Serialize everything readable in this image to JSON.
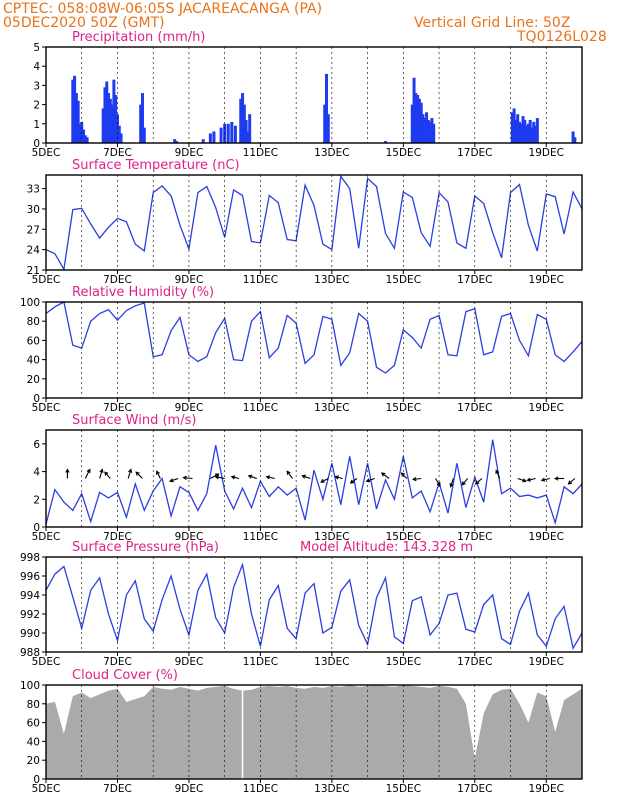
{
  "header": {
    "line1": "CPTEC:    058:08W-06:05S   JACAREACANGA (PA)",
    "line2": "05DEC2020 50Z (GMT)",
    "right1": "Vertical Grid Line: 50Z",
    "right2": "TQ0126L028"
  },
  "x_days": [
    "5DEC",
    "7DEC",
    "9DEC",
    "11DEC",
    "13DEC",
    "15DEC",
    "17DEC",
    "19DEC"
  ],
  "chart_data": [
    {
      "type": "bar",
      "title": "Precipitation  (mm/h)",
      "ylim": [
        0,
        5
      ],
      "yticks": [
        "0",
        "1",
        "2",
        "3",
        "4",
        "5"
      ],
      "xlim_days": [
        5,
        20
      ],
      "x": [
        5.75,
        5.8,
        5.85,
        5.9,
        5.95,
        6.0,
        6.05,
        6.1,
        6.15,
        6.6,
        6.65,
        6.7,
        6.75,
        6.8,
        6.85,
        6.9,
        6.95,
        7.0,
        7.05,
        7.1,
        7.65,
        7.7,
        7.75,
        8.6,
        8.65,
        9.4,
        9.6,
        9.7,
        9.9,
        10.0,
        10.1,
        10.2,
        10.3,
        10.45,
        10.5,
        10.55,
        10.6,
        10.65,
        10.7,
        12.8,
        12.85,
        12.9,
        14.5,
        15.25,
        15.3,
        15.35,
        15.4,
        15.45,
        15.5,
        15.55,
        15.6,
        15.65,
        15.7,
        15.75,
        15.8,
        15.85,
        18.05,
        18.1,
        18.15,
        18.2,
        18.25,
        18.3,
        18.35,
        18.4,
        18.45,
        18.5,
        18.55,
        18.6,
        18.65,
        18.7,
        18.75,
        19.75,
        19.8
      ],
      "values": [
        3.3,
        3.5,
        2.6,
        2.2,
        1.0,
        1.1,
        0.7,
        0.4,
        0.3,
        1.8,
        2.9,
        3.2,
        2.6,
        2.3,
        2.0,
        3.3,
        2.5,
        1.5,
        0.9,
        0.5,
        2.0,
        2.6,
        0.8,
        0.2,
        0.1,
        0.2,
        0.5,
        0.6,
        0.8,
        1.0,
        1.0,
        1.1,
        0.9,
        2.3,
        2.6,
        2.0,
        1.2,
        0.6,
        1.5,
        2.0,
        3.6,
        1.5,
        0.1,
        2.0,
        3.4,
        2.6,
        2.5,
        2.3,
        2.1,
        1.5,
        1.3,
        1.6,
        1.2,
        1.1,
        1.3,
        1.0,
        1.6,
        1.8,
        1.2,
        1.5,
        1.1,
        1.0,
        1.4,
        1.2,
        0.9,
        1.0,
        1.2,
        0.8,
        1.1,
        0.9,
        1.3,
        0.6,
        0.3
      ]
    },
    {
      "type": "line",
      "title": "Surface Temperature (nC)",
      "ylim": [
        21,
        35
      ],
      "yticks": [
        "21",
        "24",
        "27",
        "30",
        "33"
      ],
      "x": [
        5,
        5.25,
        5.5,
        5.75,
        6,
        6.25,
        6.5,
        6.75,
        7,
        7.25,
        7.5,
        7.75,
        8,
        8.25,
        8.5,
        8.75,
        9,
        9.25,
        9.5,
        9.75,
        10,
        10.25,
        10.5,
        10.75,
        11,
        11.25,
        11.5,
        11.75,
        12,
        12.25,
        12.5,
        12.75,
        13,
        13.25,
        13.5,
        13.75,
        14,
        14.25,
        14.5,
        14.75,
        15,
        15.25,
        15.5,
        15.75,
        16,
        16.25,
        16.5,
        16.75,
        17,
        17.25,
        17.5,
        17.75,
        18,
        18.25,
        18.5,
        18.75,
        19,
        19.25,
        19.5,
        19.75,
        20
      ],
      "values": [
        24.0,
        23.4,
        21.1,
        29.9,
        30.1,
        27.8,
        25.7,
        27.3,
        28.6,
        28.1,
        24.8,
        23.8,
        32.4,
        33.4,
        31.9,
        27.6,
        24.1,
        32.4,
        33.3,
        30.2,
        25.8,
        32.8,
        32.0,
        25.2,
        25.0,
        32.0,
        30.9,
        25.5,
        25.3,
        33.5,
        30.5,
        24.8,
        24.0,
        34.8,
        33.0,
        24.2,
        34.5,
        33.3,
        26.4,
        24.2,
        32.5,
        31.7,
        26.5,
        24.5,
        32.4,
        31.0,
        25.0,
        24.2,
        31.9,
        30.8,
        26.5,
        22.8,
        32.4,
        33.6,
        27.6,
        23.8,
        32.2,
        31.8,
        26.3,
        32.5,
        30.0
      ]
    },
    {
      "type": "line",
      "title": "Relative Humidity  (%)",
      "ylim": [
        0,
        100
      ],
      "yticks": [
        "0",
        "20",
        "40",
        "60",
        "80",
        "100"
      ],
      "x": [
        5,
        5.25,
        5.5,
        5.75,
        6,
        6.25,
        6.5,
        6.75,
        7,
        7.25,
        7.5,
        7.75,
        8,
        8.25,
        8.5,
        8.75,
        9,
        9.25,
        9.5,
        9.75,
        10,
        10.25,
        10.5,
        10.75,
        11,
        11.25,
        11.5,
        11.75,
        12,
        12.25,
        12.5,
        12.75,
        13,
        13.25,
        13.5,
        13.75,
        14,
        14.25,
        14.5,
        14.75,
        15,
        15.25,
        15.5,
        15.75,
        16,
        16.25,
        16.5,
        16.75,
        17,
        17.25,
        17.5,
        17.75,
        18,
        18.25,
        18.5,
        18.75,
        19,
        19.25,
        19.5,
        19.75,
        20
      ],
      "values": [
        88,
        95,
        100,
        55,
        52,
        80,
        88,
        92,
        81,
        91,
        96,
        99,
        43,
        45,
        70,
        84,
        45,
        38,
        43,
        68,
        83,
        40,
        39,
        80,
        90,
        42,
        52,
        86,
        78,
        36,
        45,
        85,
        82,
        34,
        47,
        88,
        80,
        32,
        26,
        34,
        71,
        63,
        52,
        82,
        86,
        45,
        44,
        90,
        93,
        45,
        48,
        85,
        88,
        60,
        44,
        87,
        82,
        45,
        38,
        48,
        59
      ]
    },
    {
      "type": "line",
      "title": "Surface Wind  (m/s)",
      "ylim": [
        0,
        7
      ],
      "yticks": [
        "0",
        "2",
        "4",
        "6"
      ],
      "x": [
        5,
        5.25,
        5.5,
        5.75,
        6,
        6.25,
        6.5,
        6.75,
        7,
        7.25,
        7.5,
        7.75,
        8,
        8.25,
        8.5,
        8.75,
        9,
        9.25,
        9.5,
        9.75,
        10,
        10.25,
        10.5,
        10.75,
        11,
        11.25,
        11.5,
        11.75,
        12,
        12.25,
        12.5,
        12.75,
        13,
        13.25,
        13.5,
        13.75,
        14,
        14.25,
        14.5,
        14.75,
        15,
        15.25,
        15.5,
        15.75,
        16,
        16.25,
        16.5,
        16.75,
        17,
        17.25,
        17.5,
        17.75,
        18,
        18.25,
        18.5,
        18.75,
        19,
        19.25,
        19.5,
        19.75,
        20
      ],
      "values": [
        0.2,
        2.7,
        1.8,
        1.2,
        2.4,
        0.4,
        2.5,
        2.1,
        2.5,
        0.7,
        3.1,
        1.2,
        2.6,
        3.5,
        0.8,
        2.9,
        2.5,
        1.2,
        2.4,
        5.9,
        2.6,
        1.3,
        2.8,
        1.4,
        3.3,
        2.2,
        2.9,
        2.3,
        2.8,
        0.5,
        4.1,
        2.0,
        4.6,
        1.6,
        5.1,
        1.6,
        4.6,
        1.3,
        3.4,
        2.0,
        5.1,
        2.1,
        2.6,
        1.1,
        3.2,
        1.0,
        4.6,
        1.4,
        3.6,
        1.8,
        6.3,
        2.4,
        2.8,
        2.2,
        2.3,
        2.1,
        2.3,
        0.3,
        2.9,
        2.4,
        3.1
      ]
    },
    {
      "type": "line",
      "title": "Surface Pressure (hPa)",
      "annotation": "Model Altitude: 143.328  m",
      "ylim": [
        988,
        998
      ],
      "yticks": [
        "988",
        "990",
        "992",
        "994",
        "996",
        "998"
      ],
      "x": [
        5,
        5.25,
        5.5,
        5.75,
        6,
        6.25,
        6.5,
        6.75,
        7,
        7.25,
        7.5,
        7.75,
        8,
        8.25,
        8.5,
        8.75,
        9,
        9.25,
        9.5,
        9.75,
        10,
        10.25,
        10.5,
        10.75,
        11,
        11.25,
        11.5,
        11.75,
        12,
        12.25,
        12.5,
        12.75,
        13,
        13.25,
        13.5,
        13.75,
        14,
        14.25,
        14.5,
        14.75,
        15,
        15.25,
        15.5,
        15.75,
        16,
        16.25,
        16.5,
        16.75,
        17,
        17.25,
        17.5,
        17.75,
        18,
        18.25,
        18.5,
        18.75,
        19,
        19.25,
        19.5,
        19.75,
        20
      ],
      "values": [
        994.5,
        996.2,
        997.0,
        993.8,
        990.5,
        994.5,
        995.8,
        992.0,
        989.2,
        994.0,
        995.5,
        991.5,
        990.2,
        993.5,
        996.0,
        992.5,
        989.8,
        994.5,
        996.2,
        991.6,
        990.0,
        994.8,
        997.2,
        992.0,
        988.6,
        993.5,
        995.0,
        990.5,
        989.4,
        994.2,
        995.2,
        990.0,
        990.6,
        994.4,
        995.6,
        990.8,
        988.8,
        993.7,
        995.8,
        989.6,
        988.9,
        993.4,
        993.8,
        989.8,
        991.0,
        994.0,
        994.2,
        990.4,
        990.1,
        993.0,
        994.0,
        989.4,
        988.8,
        992.3,
        994.2,
        989.8,
        988.6,
        991.5,
        992.8,
        988.4,
        990.0
      ]
    },
    {
      "type": "area",
      "title": "Cloud Cover  (%)",
      "ylim": [
        0,
        100
      ],
      "yticks": [
        "0",
        "20",
        "40",
        "60",
        "80",
        "100"
      ],
      "x": [
        5,
        5.25,
        5.5,
        5.75,
        6,
        6.25,
        6.5,
        6.75,
        7,
        7.25,
        7.5,
        7.75,
        8,
        8.25,
        8.5,
        8.75,
        9,
        9.25,
        9.5,
        9.75,
        10,
        10.25,
        10.5,
        10.75,
        11,
        11.25,
        11.5,
        11.75,
        12,
        12.25,
        12.5,
        12.75,
        13,
        13.25,
        13.5,
        13.75,
        14,
        14.25,
        14.5,
        14.75,
        15,
        15.25,
        15.5,
        15.75,
        16,
        16.25,
        16.5,
        16.75,
        17,
        17.25,
        17.5,
        17.75,
        18,
        18.25,
        18.5,
        18.75,
        19,
        19.25,
        19.5,
        19.75,
        20
      ],
      "values": [
        80,
        82,
        48,
        88,
        92,
        86,
        90,
        94,
        96,
        82,
        85,
        88,
        98,
        96,
        95,
        98,
        96,
        94,
        97,
        98,
        99,
        96,
        94,
        95,
        98,
        99,
        98,
        99,
        97,
        96,
        98,
        97,
        99,
        98,
        100,
        98,
        99,
        100,
        99,
        98,
        100,
        99,
        98,
        97,
        99,
        98,
        96,
        80,
        22,
        70,
        90,
        95,
        96,
        80,
        60,
        92,
        88,
        50,
        84,
        90,
        96
      ]
    }
  ],
  "wind_arrows": [
    {
      "x": 5.6,
      "u": 0,
      "v": 1
    },
    {
      "x": 6.1,
      "u": 0.5,
      "v": 1
    },
    {
      "x": 6.5,
      "u": 0.3,
      "v": 1
    },
    {
      "x": 6.8,
      "u": -0.6,
      "v": 0.7
    },
    {
      "x": 7.3,
      "u": 0.3,
      "v": 1
    },
    {
      "x": 7.7,
      "u": -0.7,
      "v": 0.7
    },
    {
      "x": 8.2,
      "u": -0.4,
      "v": 0.8
    },
    {
      "x": 8.7,
      "u": -0.9,
      "v": -0.3
    },
    {
      "x": 9.1,
      "u": -1,
      "v": 0.1
    },
    {
      "x": 9.6,
      "u": 0.9,
      "v": 0.5
    },
    {
      "x": 10.0,
      "u": -1,
      "v": 0.2
    },
    {
      "x": 10.4,
      "u": -0.8,
      "v": 0.2
    },
    {
      "x": 10.9,
      "u": -0.9,
      "v": 0.3
    },
    {
      "x": 11.4,
      "u": -0.9,
      "v": 0.2
    },
    {
      "x": 11.9,
      "u": -0.6,
      "v": 0.8
    },
    {
      "x": 12.4,
      "u": -0.9,
      "v": 0.3
    },
    {
      "x": 12.9,
      "u": -0.8,
      "v": -0.4
    },
    {
      "x": 13.3,
      "u": -0.8,
      "v": 0.2
    },
    {
      "x": 13.7,
      "u": -0.7,
      "v": -0.5
    },
    {
      "x": 14.2,
      "u": -0.9,
      "v": -0.3
    },
    {
      "x": 14.6,
      "u": -0.8,
      "v": 0.6
    },
    {
      "x": 15.1,
      "u": -0.6,
      "v": 0.6
    },
    {
      "x": 15.5,
      "u": -0.9,
      "v": -0.1
    },
    {
      "x": 15.9,
      "u": 0.5,
      "v": -0.8
    },
    {
      "x": 16.4,
      "u": -0.3,
      "v": -0.9
    },
    {
      "x": 16.8,
      "u": -0.6,
      "v": -0.7
    },
    {
      "x": 17.2,
      "u": -0.7,
      "v": -0.6
    },
    {
      "x": 17.7,
      "u": -0.4,
      "v": 0.9
    },
    {
      "x": 18.2,
      "u": 0.9,
      "v": -0.3
    },
    {
      "x": 18.7,
      "u": -0.9,
      "v": -0.2
    },
    {
      "x": 19.1,
      "u": -0.9,
      "v": -0.2
    },
    {
      "x": 19.5,
      "u": -1,
      "v": 0
    },
    {
      "x": 19.8,
      "u": -0.7,
      "v": -0.6
    }
  ]
}
